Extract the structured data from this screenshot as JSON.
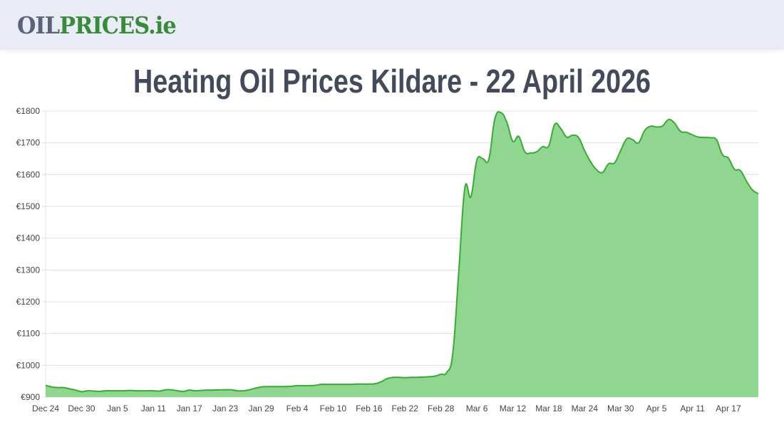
{
  "header": {
    "logo_part1": "OIL",
    "logo_part2": "PRICES.ie"
  },
  "page_title": "Heating Oil Prices Kildare - 22 April 2026",
  "colors": {
    "fill": "#90d590",
    "line": "#3aaa35",
    "logo_gray": "#5a6478",
    "logo_green": "#3a8a3c",
    "title": "#434a5a"
  },
  "chart_data": {
    "type": "area",
    "title": "",
    "xlabel": "",
    "ylabel": "",
    "ylim": [
      900,
      1800
    ],
    "y_ticks": [
      "€900",
      "€1000",
      "€1100",
      "€1200",
      "€1300",
      "€1400",
      "€1500",
      "€1600",
      "€1700",
      "€1800"
    ],
    "y_tick_values": [
      900,
      1000,
      1100,
      1200,
      1300,
      1400,
      1500,
      1600,
      1700,
      1800
    ],
    "x_start": "Dec 24",
    "x_end": "Apr 22",
    "x_ticks": [
      "Dec 24",
      "Dec 30",
      "Jan 5",
      "Jan 11",
      "Jan 17",
      "Jan 23",
      "Jan 29",
      "Feb 4",
      "Feb 10",
      "Feb 16",
      "Feb 22",
      "Feb 28",
      "Mar 6",
      "Mar 12",
      "Mar 18",
      "Mar 24",
      "Mar 30",
      "Apr 5",
      "Apr 11",
      "Apr 17"
    ],
    "x_tick_interval_days": 6,
    "grid": true,
    "series": [
      {
        "values": [
          937,
          932,
          930,
          930,
          926,
          922,
          917,
          920,
          919,
          918,
          920,
          920,
          920,
          920,
          921,
          920,
          920,
          920,
          920,
          919,
          923,
          923,
          920,
          918,
          922,
          920,
          921,
          922,
          922,
          923,
          923,
          923,
          920,
          920,
          923,
          928,
          932,
          933,
          933,
          933,
          933,
          934,
          936,
          936,
          936,
          937,
          940,
          940,
          940,
          940,
          940,
          940,
          941,
          941,
          941,
          942,
          948,
          958,
          962,
          962,
          961,
          962,
          962,
          963,
          964,
          966,
          972,
          978,
          1040,
          1300,
          1558,
          1530,
          1645,
          1650,
          1648,
          1775,
          1795,
          1765,
          1705,
          1720,
          1672,
          1668,
          1672,
          1688,
          1690,
          1758,
          1745,
          1718,
          1724,
          1716,
          1675,
          1640,
          1615,
          1607,
          1634,
          1637,
          1675,
          1712,
          1710,
          1700,
          1738,
          1752,
          1750,
          1753,
          1773,
          1762,
          1736,
          1733,
          1725,
          1718,
          1717,
          1716,
          1710,
          1663,
          1652,
          1617,
          1613,
          1580,
          1552,
          1540
        ]
      }
    ]
  }
}
